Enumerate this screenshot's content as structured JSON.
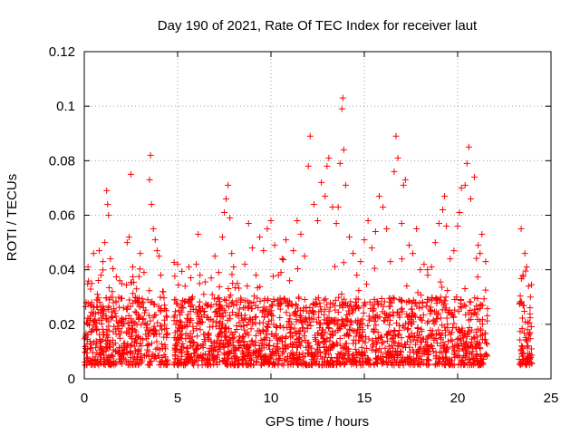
{
  "chart_data": {
    "type": "scatter",
    "title": "Day 190 of 2021, Rate Of TEC Index for receiver laut",
    "xlabel": "GPS time / hours",
    "ylabel": "ROTI / TECUs",
    "xlim": [
      0,
      24
    ],
    "ylim": [
      0,
      0.12
    ],
    "x_ticks": [
      0,
      5,
      10,
      15,
      20,
      25
    ],
    "x_tick_labels": [
      "0",
      "5",
      "10",
      "15",
      "20",
      "25"
    ],
    "y_ticks": [
      0,
      0.02,
      0.04,
      0.06,
      0.08,
      0.1,
      0.12
    ],
    "y_tick_labels": [
      "0",
      "0.02",
      "0.04",
      "0.06",
      "0.08",
      "0.1",
      "0.12"
    ],
    "grid": true,
    "marker": "+",
    "series": [
      {
        "name": "ROTI",
        "color": "#ff0000",
        "points": [
          [
            0.1,
            0.028
          ],
          [
            0.2,
            0.041
          ],
          [
            0.3,
            0.022
          ],
          [
            0.4,
            0.035
          ],
          [
            0.5,
            0.046
          ],
          [
            0.6,
            0.019
          ],
          [
            0.7,
            0.031
          ],
          [
            0.8,
            0.047
          ],
          [
            0.9,
            0.038
          ],
          [
            1.0,
            0.043
          ],
          [
            1.1,
            0.05
          ],
          [
            1.2,
            0.069
          ],
          [
            1.25,
            0.064
          ],
          [
            1.3,
            0.06
          ],
          [
            1.4,
            0.044
          ],
          [
            1.5,
            0.032
          ],
          [
            1.7,
            0.028
          ],
          [
            1.9,
            0.036
          ],
          [
            2.1,
            0.026
          ],
          [
            2.3,
            0.05
          ],
          [
            2.4,
            0.052
          ],
          [
            2.5,
            0.075
          ],
          [
            2.6,
            0.041
          ],
          [
            2.8,
            0.033
          ],
          [
            3.0,
            0.046
          ],
          [
            3.2,
            0.039
          ],
          [
            3.4,
            0.029
          ],
          [
            3.5,
            0.073
          ],
          [
            3.55,
            0.082
          ],
          [
            3.6,
            0.064
          ],
          [
            3.7,
            0.055
          ],
          [
            3.8,
            0.051
          ],
          [
            3.9,
            0.047
          ],
          [
            4.0,
            0.045
          ],
          [
            4.1,
            0.038
          ],
          [
            4.2,
            0.032
          ],
          [
            4.3,
            0.027
          ],
          [
            4.9,
            0.029
          ],
          [
            5.0,
            0.042
          ],
          [
            5.2,
            0.026
          ],
          [
            5.4,
            0.034
          ],
          [
            5.6,
            0.041
          ],
          [
            5.8,
            0.03
          ],
          [
            6.0,
            0.042
          ],
          [
            6.1,
            0.053
          ],
          [
            6.2,
            0.038
          ],
          [
            6.4,
            0.031
          ],
          [
            6.6,
            0.027
          ],
          [
            6.8,
            0.037
          ],
          [
            7.0,
            0.045
          ],
          [
            7.2,
            0.039
          ],
          [
            7.4,
            0.052
          ],
          [
            7.5,
            0.061
          ],
          [
            7.6,
            0.066
          ],
          [
            7.7,
            0.071
          ],
          [
            7.8,
            0.059
          ],
          [
            7.9,
            0.046
          ],
          [
            8.0,
            0.041
          ],
          [
            8.2,
            0.035
          ],
          [
            8.4,
            0.029
          ],
          [
            8.6,
            0.042
          ],
          [
            8.8,
            0.057
          ],
          [
            9.0,
            0.048
          ],
          [
            9.2,
            0.038
          ],
          [
            9.4,
            0.052
          ],
          [
            9.6,
            0.047
          ],
          [
            9.8,
            0.055
          ],
          [
            10.0,
            0.058
          ],
          [
            10.2,
            0.049
          ],
          [
            10.4,
            0.038
          ],
          [
            10.6,
            0.044
          ],
          [
            10.8,
            0.051
          ],
          [
            11.0,
            0.036
          ],
          [
            11.2,
            0.047
          ],
          [
            11.4,
            0.058
          ],
          [
            11.6,
            0.053
          ],
          [
            11.8,
            0.045
          ],
          [
            12.0,
            0.078
          ],
          [
            12.1,
            0.089
          ],
          [
            12.3,
            0.064
          ],
          [
            12.5,
            0.058
          ],
          [
            12.7,
            0.072
          ],
          [
            12.9,
            0.067
          ],
          [
            13.0,
            0.078
          ],
          [
            13.1,
            0.081
          ],
          [
            13.3,
            0.063
          ],
          [
            13.5,
            0.057
          ],
          [
            13.6,
            0.063
          ],
          [
            13.7,
            0.079
          ],
          [
            13.8,
            0.099
          ],
          [
            13.85,
            0.103
          ],
          [
            13.9,
            0.084
          ],
          [
            14.0,
            0.071
          ],
          [
            14.2,
            0.052
          ],
          [
            14.4,
            0.046
          ],
          [
            14.6,
            0.038
          ],
          [
            14.8,
            0.043
          ],
          [
            15.0,
            0.051
          ],
          [
            15.2,
            0.058
          ],
          [
            15.4,
            0.048
          ],
          [
            15.6,
            0.054
          ],
          [
            15.8,
            0.067
          ],
          [
            16.0,
            0.063
          ],
          [
            16.2,
            0.055
          ],
          [
            16.4,
            0.043
          ],
          [
            16.6,
            0.076
          ],
          [
            16.7,
            0.089
          ],
          [
            16.8,
            0.081
          ],
          [
            17.0,
            0.057
          ],
          [
            17.1,
            0.071
          ],
          [
            17.2,
            0.073
          ],
          [
            17.4,
            0.049
          ],
          [
            17.6,
            0.046
          ],
          [
            17.8,
            0.055
          ],
          [
            18.0,
            0.04
          ],
          [
            18.2,
            0.042
          ],
          [
            18.4,
            0.038
          ],
          [
            18.6,
            0.041
          ],
          [
            18.8,
            0.05
          ],
          [
            19.0,
            0.057
          ],
          [
            19.2,
            0.062
          ],
          [
            19.3,
            0.067
          ],
          [
            19.4,
            0.056
          ],
          [
            19.6,
            0.044
          ],
          [
            19.8,
            0.047
          ],
          [
            20.0,
            0.056
          ],
          [
            20.1,
            0.061
          ],
          [
            20.2,
            0.07
          ],
          [
            20.4,
            0.071
          ],
          [
            20.5,
            0.079
          ],
          [
            20.6,
            0.085
          ],
          [
            20.7,
            0.066
          ],
          [
            20.9,
            0.074
          ],
          [
            21.1,
            0.049
          ],
          [
            21.2,
            0.046
          ],
          [
            21.3,
            0.053
          ],
          [
            21.5,
            0.043
          ],
          [
            23.4,
            0.055
          ],
          [
            23.5,
            0.038
          ],
          [
            23.6,
            0.046
          ],
          [
            23.7,
            0.041
          ],
          [
            23.8,
            0.034
          ],
          [
            23.9,
            0.03
          ]
        ]
      }
    ]
  }
}
